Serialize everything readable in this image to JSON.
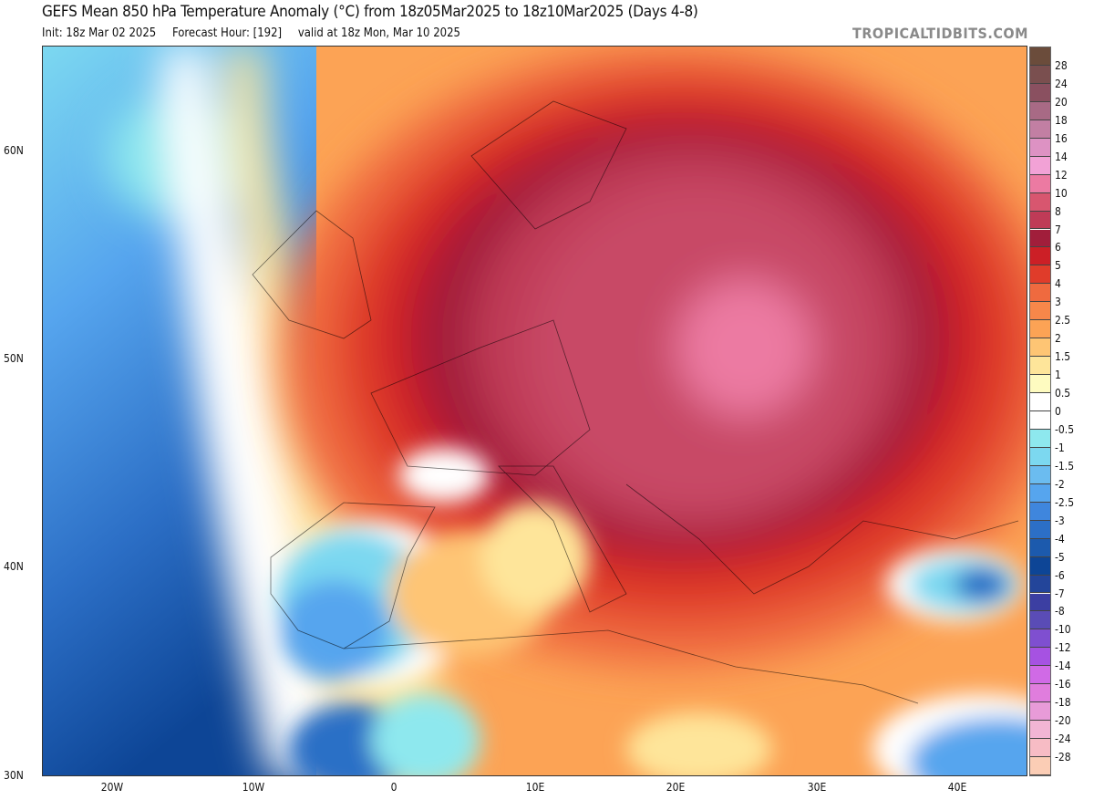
{
  "header": {
    "title": "GEFS Mean 850 hPa Temperature Anomaly (°C) from 18z05Mar2025 to 18z10Mar2025 (Days 4-8)",
    "init": "Init: 18z Mar 02 2025",
    "forecast_hour": "Forecast Hour: [192]",
    "valid": "valid at 18z Mon, Mar 10 2025",
    "brand": "TROPICALTIDBITS.COM"
  },
  "axes": {
    "lat_labels": [
      "60N",
      "50N",
      "40N",
      "30N"
    ],
    "lon_labels": [
      "20W",
      "10W",
      "0",
      "10E",
      "20E",
      "30E",
      "40E"
    ]
  },
  "colorbar": {
    "labels": [
      "28",
      "24",
      "20",
      "18",
      "16",
      "14",
      "12",
      "10",
      "8",
      "7",
      "6",
      "5",
      "4",
      "3",
      "2.5",
      "2",
      "1.5",
      "1",
      "0.5",
      "0",
      "-0.5",
      "-1",
      "-1.5",
      "-2",
      "-2.5",
      "-3",
      "-4",
      "-5",
      "-6",
      "-7",
      "-8",
      "-10",
      "-12",
      "-14",
      "-16",
      "-18",
      "-20",
      "-24",
      "-28"
    ],
    "colors": [
      "#6b4c3b",
      "#7a4f4f",
      "#8a5060",
      "#a86a85",
      "#c27fa3",
      "#dd92c3",
      "#f2a2d6",
      "#ec7aa2",
      "#d8566f",
      "#bf3b57",
      "#a11e3b",
      "#cc1f26",
      "#e03c2a",
      "#ef6a3f",
      "#f7874a",
      "#fca355",
      "#fec574",
      "#fee59a",
      "#fefbc0",
      "#ffffff",
      "#ffffff",
      "#8ee8ee",
      "#7cd8f0",
      "#6bbcf0",
      "#56a5ee",
      "#3f86dd",
      "#2c6fc6",
      "#1c5aad",
      "#0d4596",
      "#23459a",
      "#3c3fa2",
      "#5a4cb6",
      "#7f4fd0",
      "#a652e2",
      "#d06ae6",
      "#e07ddd",
      "#e89bd8",
      "#f2b5d4",
      "#f7bcc5",
      "#fbcdb5"
    ]
  }
}
